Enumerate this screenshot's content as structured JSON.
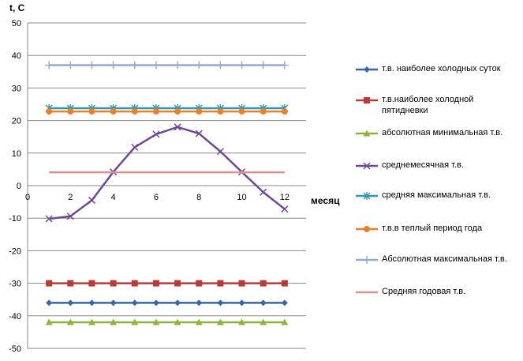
{
  "chart_data": {
    "type": "line",
    "ylabel": "t, C",
    "xlabel": "месяц",
    "x": [
      1,
      2,
      3,
      4,
      5,
      6,
      7,
      8,
      9,
      10,
      11,
      12
    ],
    "xlim": [
      0,
      13
    ],
    "ylim": [
      -50,
      50
    ],
    "x_ticks": [
      0,
      2,
      4,
      6,
      8,
      10,
      12
    ],
    "y_ticks": [
      50,
      40,
      30,
      20,
      10,
      0,
      -10,
      -20,
      -30,
      -40,
      -50
    ],
    "grid": "horizontal",
    "legend_position": "right",
    "series": [
      {
        "name": "т.в. наиболее холодных суток",
        "color": "#3c67a5",
        "marker": "diamond",
        "values": [
          -36,
          -36,
          -36,
          -36,
          -36,
          -36,
          -36,
          -36,
          -36,
          -36,
          -36,
          -36
        ]
      },
      {
        "name": "т.в.наиболее холодной пятидневки",
        "color": "#b73b38",
        "marker": "square",
        "values": [
          -30,
          -30,
          -30,
          -30,
          -30,
          -30,
          -30,
          -30,
          -30,
          -30,
          -30,
          -30
        ]
      },
      {
        "name": "абсолютная минимальная т.в.",
        "color": "#8fb33c",
        "marker": "triangle",
        "values": [
          -42,
          -42,
          -42,
          -42,
          -42,
          -42,
          -42,
          -42,
          -42,
          -42,
          -42,
          -42
        ]
      },
      {
        "name": "среднемесячная т.в.",
        "color": "#6e4a92",
        "marker": "x",
        "values": [
          -10.2,
          -9.4,
          -4.5,
          4.2,
          11.8,
          15.8,
          18,
          16,
          10.5,
          4.2,
          -2,
          -7.2
        ]
      },
      {
        "name": "средняя максимальная т.в.",
        "color": "#3396aa",
        "marker": "star",
        "values": [
          23.8,
          23.8,
          23.8,
          23.8,
          23.8,
          23.8,
          23.8,
          23.8,
          23.8,
          23.8,
          23.8,
          23.8
        ]
      },
      {
        "name": "т.в.в теплый период года",
        "color": "#e8812e",
        "marker": "circle",
        "values": [
          22.8,
          22.8,
          22.8,
          22.8,
          22.8,
          22.8,
          22.8,
          22.8,
          22.8,
          22.8,
          22.8,
          22.8
        ]
      },
      {
        "name": "Абсолютная максимальная т.в.",
        "color": "#93aad3",
        "marker": "plus",
        "values": [
          37,
          37,
          37,
          37,
          37,
          37,
          37,
          37,
          37,
          37,
          37,
          37
        ]
      },
      {
        "name": "Средняя годовая т.в.",
        "color": "#d99593",
        "marker": "none",
        "values": [
          4.1,
          4.1,
          4.1,
          4.1,
          4.1,
          4.1,
          4.1,
          4.1,
          4.1,
          4.1,
          4.1,
          4.1
        ]
      }
    ]
  }
}
